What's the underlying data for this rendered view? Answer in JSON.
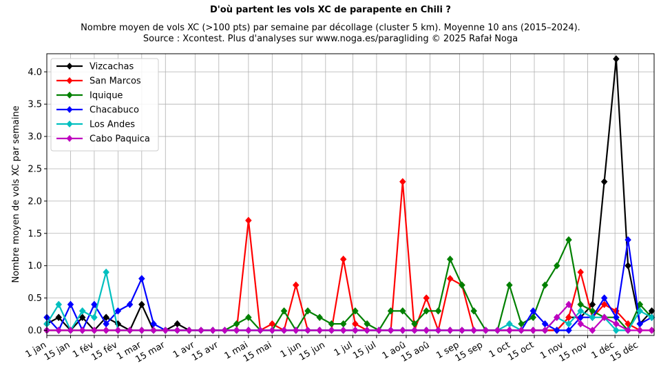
{
  "chart_data": {
    "type": "line",
    "title": "D'où partent les vols XC de parapente en Chili ?",
    "subtitle_lines": [
      "Nombre moyen de vols XC (>100 pts) par semaine par décollage (cluster 5 km). Moyenne 10 ans (2015–2024).",
      "Source : Xcontest. Plus d'analyses sur www.noga.es/paragliding © 2025 Rafał Noga"
    ],
    "xlabel": "",
    "ylabel": "Nombre moyen de vols XC par semaine",
    "xlim": [
      1,
      52.2
    ],
    "ylim": [
      -0.08,
      4.28
    ],
    "x_ticks": [
      {
        "week": 1,
        "label": "1 jan"
      },
      {
        "week": 3,
        "label": "15 jan"
      },
      {
        "week": 5,
        "label": "1 fév"
      },
      {
        "week": 7,
        "label": "15 fév"
      },
      {
        "week": 9,
        "label": "1 mar"
      },
      {
        "week": 11,
        "label": "15 mar"
      },
      {
        "week": 13.5,
        "label": "1 avr"
      },
      {
        "week": 15.5,
        "label": "15 avr"
      },
      {
        "week": 18,
        "label": "1 mai"
      },
      {
        "week": 20,
        "label": "15 mai"
      },
      {
        "week": 22.5,
        "label": "1 jun"
      },
      {
        "week": 24.5,
        "label": "15 jun"
      },
      {
        "week": 26.8,
        "label": "1 jul"
      },
      {
        "week": 28.8,
        "label": "15 jul"
      },
      {
        "week": 31.3,
        "label": "1 aoû"
      },
      {
        "week": 33.3,
        "label": "15 aoû"
      },
      {
        "week": 35.8,
        "label": "1 sep"
      },
      {
        "week": 37.8,
        "label": "15 sep"
      },
      {
        "week": 40.1,
        "label": "1 oct"
      },
      {
        "week": 42.1,
        "label": "15 oct"
      },
      {
        "week": 44.6,
        "label": "1 nov"
      },
      {
        "week": 46.6,
        "label": "15 nov"
      },
      {
        "week": 48.9,
        "label": "1 déc"
      },
      {
        "week": 50.9,
        "label": "15 déc"
      }
    ],
    "y_ticks": [
      0.0,
      0.5,
      1.0,
      1.5,
      2.0,
      2.5,
      3.0,
      3.5,
      4.0
    ],
    "y_tick_labels": [
      "0.0",
      "0.5",
      "1.0",
      "1.5",
      "2.0",
      "2.5",
      "3.0",
      "3.5",
      "4.0"
    ],
    "grid": true,
    "legend_position": "top-left",
    "x": [
      1,
      2,
      3,
      4,
      5,
      6,
      7,
      8,
      9,
      10,
      11,
      12,
      13,
      14,
      15,
      16,
      17,
      18,
      19,
      20,
      21,
      22,
      23,
      24,
      25,
      26,
      27,
      28,
      29,
      30,
      31,
      32,
      33,
      34,
      35,
      36,
      37,
      38,
      39,
      40,
      41,
      42,
      43,
      44,
      45,
      46,
      47,
      48,
      49,
      50,
      51,
      52
    ],
    "series": [
      {
        "name": "Vizcachas",
        "color": "#000000",
        "values": [
          0.1,
          0.2,
          0,
          0.2,
          0,
          0.2,
          0.1,
          0,
          0.4,
          0,
          0,
          0.1,
          0,
          0,
          0,
          0,
          0,
          0,
          0,
          0,
          0,
          0,
          0,
          0,
          0,
          0,
          0,
          0,
          0,
          0,
          0,
          0,
          0,
          0,
          0,
          0,
          0,
          0,
          0,
          0,
          0,
          0,
          0,
          0,
          0.2,
          0.2,
          0.4,
          2.3,
          4.2,
          1.0,
          0.1,
          0.3
        ]
      },
      {
        "name": "San Marcos",
        "color": "#ff0000",
        "values": [
          0,
          0,
          0,
          0,
          0,
          0,
          0,
          0,
          0,
          0,
          0,
          0,
          0,
          0,
          0,
          0,
          0,
          1.7,
          0,
          0.1,
          0,
          0.7,
          0,
          0,
          0,
          1.1,
          0.1,
          0,
          0,
          0,
          2.3,
          0,
          0.5,
          0,
          0.8,
          0.7,
          0,
          0,
          0,
          0,
          0,
          0,
          0,
          0,
          0.2,
          0.9,
          0.2,
          0.4,
          0.3,
          0.1,
          0,
          0
        ]
      },
      {
        "name": "Iquique",
        "color": "#008000",
        "values": [
          0,
          0,
          0,
          0,
          0,
          0,
          0,
          0,
          0,
          0,
          0,
          0,
          0,
          0,
          0,
          0,
          0.1,
          0.2,
          0,
          0,
          0.3,
          0,
          0.3,
          0.2,
          0.1,
          0.1,
          0.3,
          0.1,
          0,
          0.3,
          0.3,
          0.1,
          0.3,
          0.3,
          1.1,
          0.7,
          0.3,
          0,
          0,
          0.7,
          0.1,
          0.2,
          0.7,
          1.0,
          1.4,
          0.4,
          0.3,
          0.2,
          0.2,
          0,
          0.4,
          0.2
        ]
      },
      {
        "name": "Chacabuco",
        "color": "#0000ff",
        "values": [
          0.2,
          0,
          0.4,
          0,
          0.4,
          0.1,
          0.3,
          0.4,
          0.8,
          0.1,
          0,
          0,
          0,
          0,
          0,
          0,
          0,
          0,
          0,
          0,
          0,
          0,
          0,
          0,
          0,
          0,
          0,
          0,
          0,
          0,
          0,
          0,
          0,
          0,
          0,
          0,
          0,
          0,
          0,
          0,
          0,
          0.3,
          0.1,
          0,
          0,
          0.2,
          0.2,
          0.5,
          0.2,
          1.4,
          0.1,
          0.2
        ]
      },
      {
        "name": "Los Andes",
        "color": "#00bfbf",
        "values": [
          0.1,
          0.4,
          0,
          0.3,
          0.2,
          0.9,
          0,
          0,
          0,
          0,
          0,
          0,
          0,
          0,
          0,
          0,
          0,
          0,
          0,
          0,
          0,
          0,
          0,
          0,
          0,
          0,
          0,
          0,
          0,
          0,
          0,
          0,
          0,
          0,
          0,
          0,
          0,
          0,
          0,
          0.1,
          0,
          0,
          0,
          0.2,
          0.1,
          0.3,
          0.2,
          0.2,
          0,
          0,
          0.3,
          0.2
        ]
      },
      {
        "name": "Cabo Paquica",
        "color": "#bf00bf",
        "values": [
          0,
          0,
          0,
          0,
          0,
          0,
          0,
          0,
          0,
          0,
          0,
          0,
          0,
          0,
          0,
          0,
          0,
          0,
          0,
          0,
          0,
          0,
          0,
          0,
          0,
          0,
          0,
          0,
          0,
          0,
          0,
          0,
          0,
          0,
          0,
          0,
          0,
          0,
          0,
          0,
          0,
          0,
          0,
          0.2,
          0.4,
          0.1,
          0,
          0.2,
          0.1,
          0,
          0,
          0
        ]
      }
    ]
  }
}
